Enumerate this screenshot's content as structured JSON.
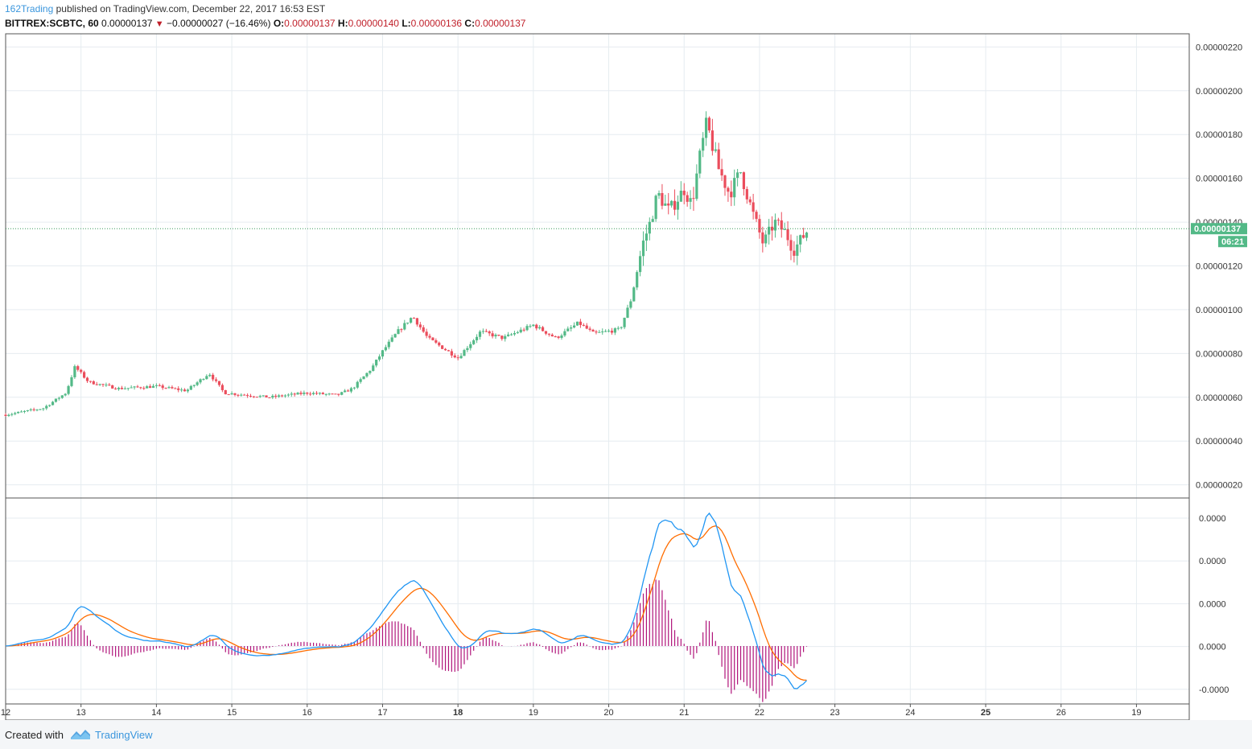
{
  "header": {
    "author": "162Trading",
    "published": " published on TradingView.com, December 22, 2017 16:53 EST",
    "symbol": "BITTREX:SCBTC, 60",
    "last": "0.00000137",
    "change_arrow": "▼",
    "change": "−0.00000027 (−16.46%)",
    "o_label": "O:",
    "o_value": "0.00000137",
    "h_label": "H:",
    "h_value": "0.00000140",
    "l_label": "L:",
    "l_value": "0.00000136",
    "c_label": "C:",
    "c_value": "0.00000137"
  },
  "footer": {
    "created_with": "Created with",
    "brand": "TradingView"
  },
  "colors": {
    "up": "#53b987",
    "down": "#eb4d5c",
    "macd": "#2196f3",
    "signal": "#ff6d00",
    "histogram": "#b0137a",
    "grid": "#e6ecf0",
    "axis_text": "#333333",
    "price_tag_bg": "#53b987",
    "price_line": "#3a9a5a"
  },
  "chart_data": [
    {
      "type": "candlestick",
      "interval": "60",
      "x_ticks": [
        "12",
        "13",
        "14",
        "15",
        "16",
        "17",
        "18",
        "19",
        "20",
        "21",
        "22",
        "23",
        "24",
        "25",
        "26",
        "19"
      ],
      "bold_ticks": [
        "18",
        "25"
      ],
      "y_ticks": [
        "0.00000020",
        "0.00000040",
        "0.00000060",
        "0.00000080",
        "0.00000100",
        "0.00000120",
        "0.00000140",
        "0.00000160",
        "0.00000180",
        "0.00000200",
        "0.00000220"
      ],
      "ylim": [
        1.4e-07,
        2.26e-06
      ],
      "current_price": "0.00000137",
      "countdown": "06:21",
      "price_path_keyframes": [
        [
          12.0,
          5.2e-07
        ],
        [
          12.5,
          5.5e-07
        ],
        [
          12.8,
          6.2e-07
        ],
        [
          12.92,
          7.4e-07
        ],
        [
          13.1,
          6.7e-07
        ],
        [
          13.5,
          6.4e-07
        ],
        [
          14.0,
          6.5e-07
        ],
        [
          14.4,
          6.3e-07
        ],
        [
          14.7,
          7.1e-07
        ],
        [
          14.9,
          6.2e-07
        ],
        [
          15.5,
          6e-07
        ],
        [
          16.0,
          6.2e-07
        ],
        [
          16.4,
          6.1e-07
        ],
        [
          16.6,
          6.4e-07
        ],
        [
          16.85,
          7.3e-07
        ],
        [
          17.0,
          8.1e-07
        ],
        [
          17.2,
          9e-07
        ],
        [
          17.4,
          9.7e-07
        ],
        [
          17.6,
          8.7e-07
        ],
        [
          18.0,
          7.8e-07
        ],
        [
          18.3,
          9e-07
        ],
        [
          18.6,
          8.7e-07
        ],
        [
          19.0,
          9.3e-07
        ],
        [
          19.3,
          8.7e-07
        ],
        [
          19.6,
          9.4e-07
        ],
        [
          19.8,
          8.9e-07
        ],
        [
          20.15,
          9.1e-07
        ],
        [
          20.3,
          1.05e-06
        ],
        [
          20.45,
          1.3e-06
        ],
        [
          20.55,
          1.4e-06
        ],
        [
          20.65,
          1.53e-06
        ],
        [
          20.8,
          1.45e-06
        ],
        [
          21.0,
          1.55e-06
        ],
        [
          21.1,
          1.48e-06
        ],
        [
          21.22,
          1.72e-06
        ],
        [
          21.3,
          1.85e-06
        ],
        [
          21.45,
          1.65e-06
        ],
        [
          21.6,
          1.53e-06
        ],
        [
          21.75,
          1.63e-06
        ],
        [
          21.9,
          1.45e-06
        ],
        [
          22.05,
          1.3e-06
        ],
        [
          22.2,
          1.4e-06
        ],
        [
          22.35,
          1.35e-06
        ],
        [
          22.45,
          1.27e-06
        ],
        [
          22.65,
          1.37e-06
        ]
      ]
    },
    {
      "type": "macd",
      "y_ticks": [
        "0.0000",
        "0.0000",
        "0.0000",
        "0.0000",
        "-0.0000"
      ],
      "series": [
        {
          "role": "macd",
          "color": "#2196f3"
        },
        {
          "role": "signal",
          "color": "#ff6d00"
        },
        {
          "role": "histogram",
          "color": "#b0137a"
        }
      ]
    }
  ]
}
